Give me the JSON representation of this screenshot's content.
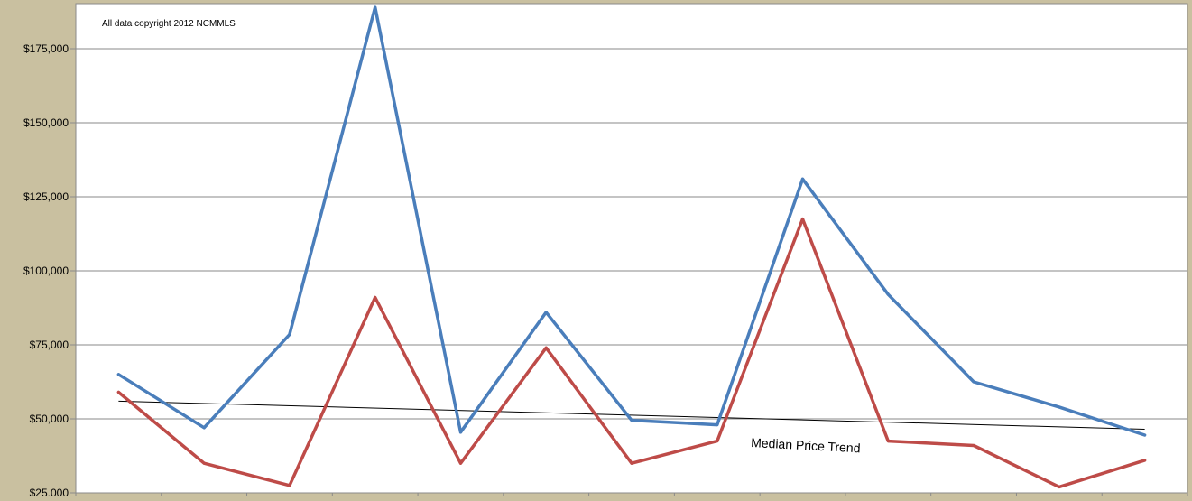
{
  "chart_data": {
    "type": "line",
    "copyright_note": "All data copyright 2012 NCMMLS",
    "trend_label": "Median Price Trend",
    "y_ticks": [
      "$25,000",
      "$50,000",
      "$75,000",
      "$100,000",
      "$125,000",
      "$150,000",
      "$175,000"
    ],
    "y_tick_values": [
      25000,
      50000,
      75000,
      100000,
      125000,
      150000,
      175000
    ],
    "ylim": [
      25000,
      190000
    ],
    "grid": true,
    "x": [
      1,
      2,
      3,
      4,
      5,
      6,
      7,
      8,
      9,
      10,
      11,
      12,
      13
    ],
    "series": [
      {
        "color": "#4a7ebb",
        "values": [
          65000,
          47000,
          78500,
          189000,
          45500,
          86000,
          49500,
          48000,
          131000,
          92000,
          62500,
          54000,
          44500
        ]
      },
      {
        "color": "#be4b48",
        "values": [
          59000,
          35000,
          27500,
          91000,
          35000,
          74000,
          35000,
          42500,
          117500,
          42500,
          41000,
          27000,
          36000
        ]
      }
    ],
    "trendline": {
      "color": "#000000",
      "start": 56000,
      "end": 46500
    }
  }
}
